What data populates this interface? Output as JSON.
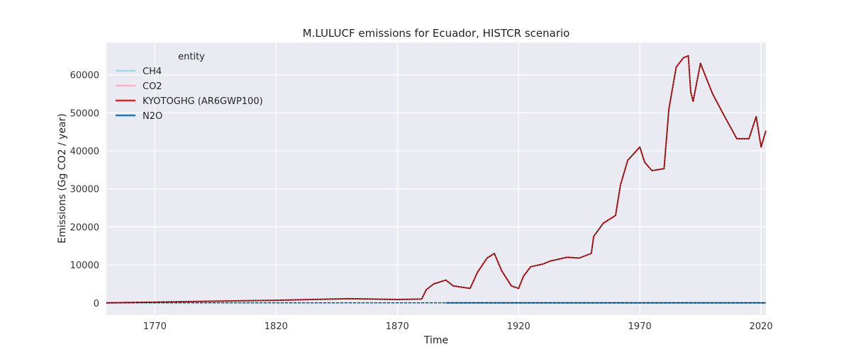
{
  "chart_data": {
    "type": "line",
    "title": "M.LULUCF emissions for Ecuador, HISTCR scenario",
    "xlabel": "Time",
    "ylabel": "Emissions (Gg CO2 / year)",
    "xlim": [
      1750,
      2022
    ],
    "ylim": [
      -3200,
      68500
    ],
    "x_ticks": [
      1770,
      1820,
      1870,
      1920,
      1970,
      2020
    ],
    "y_ticks": [
      0,
      10000,
      20000,
      30000,
      40000,
      50000,
      60000
    ],
    "grid": true,
    "legend": {
      "title": "entity",
      "placement": "top-left"
    },
    "series": [
      {
        "name": "CH4",
        "color": "#9fd8ea",
        "style": "solid",
        "x": [
          1750,
          1890
        ],
        "y": [
          0,
          0
        ]
      },
      {
        "name": "CO2",
        "color": "#f4b6c8",
        "style": "solid",
        "x": [
          1750,
          1770,
          1800,
          1820,
          1850,
          1870,
          1880,
          1882,
          1885,
          1890,
          1893,
          1900,
          1903,
          1907,
          1910,
          1913,
          1917,
          1920,
          1922,
          1925,
          1930,
          1933,
          1940,
          1945,
          1950,
          1951,
          1955,
          1960,
          1962,
          1965,
          1970,
          1972,
          1975,
          1980,
          1982,
          1985,
          1988,
          1990,
          1991,
          1992,
          1995,
          2000,
          2005,
          2010,
          2015,
          2018,
          2020,
          2022
        ],
        "y": [
          0,
          200,
          500,
          700,
          1100,
          900,
          1000,
          3500,
          5000,
          6000,
          4500,
          3800,
          8000,
          11800,
          13000,
          8500,
          4500,
          3800,
          7000,
          9500,
          10200,
          11000,
          12000,
          11800,
          13000,
          17500,
          21000,
          23000,
          31000,
          37500,
          41000,
          37000,
          34800,
          35300,
          51000,
          62000,
          64500,
          65000,
          55500,
          53000,
          63000,
          55000,
          49000,
          43200,
          43200,
          49000,
          41000,
          45300
        ]
      },
      {
        "name": "KYOTOGHG (AR6GWP100)",
        "color": "#d62728",
        "style": "solid",
        "x": [
          1750,
          1770,
          1800,
          1820,
          1850,
          1870,
          1880,
          1882,
          1885,
          1890,
          1893,
          1900,
          1903,
          1907,
          1910,
          1913,
          1917,
          1920,
          1922,
          1925,
          1930,
          1933,
          1940,
          1945,
          1950,
          1951,
          1955,
          1960,
          1962,
          1965,
          1970,
          1972,
          1975,
          1980,
          1982,
          1985,
          1988,
          1990,
          1991,
          1992,
          1995,
          2000,
          2005,
          2010,
          2015,
          2018,
          2020,
          2022
        ],
        "y": [
          0,
          200,
          500,
          700,
          1100,
          900,
          1000,
          3500,
          5000,
          6000,
          4500,
          3800,
          8000,
          11800,
          13000,
          8500,
          4500,
          3800,
          7000,
          9500,
          10200,
          11000,
          12000,
          11800,
          13000,
          17500,
          21000,
          23000,
          31000,
          37500,
          41000,
          37000,
          34800,
          35300,
          51000,
          62000,
          64500,
          65000,
          55500,
          53000,
          63000,
          55000,
          49000,
          43200,
          43200,
          49000,
          41000,
          45300
        ]
      },
      {
        "name": "N2O",
        "color": "#1f77b4",
        "style": "solid",
        "x": [
          1890,
          2022
        ],
        "y": [
          0,
          0
        ]
      },
      {
        "name": "",
        "color": "#111111",
        "style": "dotted",
        "x": [
          1750,
          1770,
          1800,
          1820,
          1850,
          1870,
          1880,
          1882,
          1885,
          1890,
          1893,
          1900,
          1903,
          1907,
          1910,
          1913,
          1917,
          1920,
          1922,
          1925,
          1930,
          1933,
          1940,
          1945,
          1950,
          1951,
          1955,
          1960,
          1962,
          1965,
          1970,
          1972,
          1975,
          1980,
          1982,
          1985,
          1988,
          1990,
          1991,
          1992,
          1995,
          2000,
          2005,
          2010,
          2015,
          2018,
          2020,
          2022
        ],
        "y": [
          0,
          200,
          500,
          700,
          1100,
          900,
          1000,
          3500,
          5000,
          6000,
          4500,
          3800,
          8000,
          11800,
          13000,
          8500,
          4500,
          3800,
          7000,
          9500,
          10200,
          11000,
          12000,
          11800,
          13000,
          17500,
          21000,
          23000,
          31000,
          37500,
          41000,
          37000,
          34800,
          35300,
          51000,
          62000,
          64500,
          65000,
          55500,
          53000,
          63000,
          55000,
          49000,
          43200,
          43200,
          49000,
          41000,
          45300
        ]
      },
      {
        "name": "",
        "color": "#111111",
        "style": "dashed",
        "x": [
          1750,
          2022
        ],
        "y": [
          0,
          0
        ]
      }
    ]
  }
}
